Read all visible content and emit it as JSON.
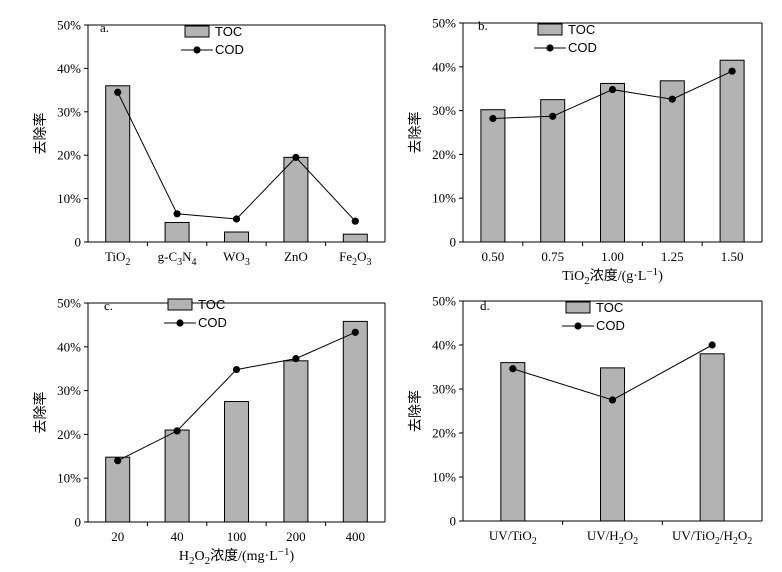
{
  "chart_data": [
    {
      "id": "a",
      "panel_label": "a.",
      "type": "bar+line",
      "ylabel": "去除率",
      "y_ticks": [
        "0",
        "10%",
        "20%",
        "30%",
        "40%",
        "50%"
      ],
      "ylim": [
        0,
        50
      ],
      "xlabel": "",
      "categories": [
        {
          "base": "TiO",
          "sub": "2",
          "rest": ""
        },
        {
          "base": "g-C",
          "sub": "3",
          "rest": "N",
          "sub2": "4"
        },
        {
          "base": "WO",
          "sub": "3",
          "rest": ""
        },
        {
          "base": "ZnO",
          "sub": "",
          "rest": ""
        },
        {
          "base": "Fe",
          "sub": "2",
          "rest": "O",
          "sub2": "3"
        }
      ],
      "series": [
        {
          "name": "TOC",
          "kind": "bar",
          "values": [
            36,
            4.5,
            2.3,
            19.5,
            1.8
          ]
        },
        {
          "name": "COD",
          "kind": "line",
          "values": [
            34.5,
            6.5,
            5.3,
            19.5,
            4.8
          ]
        }
      ],
      "legend": [
        "TOC",
        "COD"
      ]
    },
    {
      "id": "b",
      "panel_label": "b.",
      "type": "bar+line",
      "ylabel": "去除率",
      "y_ticks": [
        "0",
        "10%",
        "20%",
        "30%",
        "40%",
        "50%"
      ],
      "ylim": [
        0,
        50
      ],
      "xlabel": {
        "pre": "TiO",
        "sub": "2",
        "mid": "浓度/(g·L",
        "sup": "−1",
        "post": ")"
      },
      "categories": [
        {
          "base": "0.50"
        },
        {
          "base": "0.75"
        },
        {
          "base": "1.00"
        },
        {
          "base": "1.25"
        },
        {
          "base": "1.50"
        }
      ],
      "series": [
        {
          "name": "TOC",
          "kind": "bar",
          "values": [
            30.2,
            32.5,
            36.2,
            36.8,
            41.5
          ]
        },
        {
          "name": "COD",
          "kind": "line",
          "values": [
            28.2,
            28.7,
            34.8,
            32.6,
            39
          ]
        }
      ],
      "legend": [
        "TOC",
        "COD"
      ]
    },
    {
      "id": "c",
      "panel_label": "c.",
      "type": "bar+line",
      "ylabel": "去除率",
      "y_ticks": [
        "0",
        "10%",
        "20%",
        "30%",
        "40%",
        "50%"
      ],
      "ylim": [
        0,
        50
      ],
      "xlabel": {
        "pre": "H",
        "sub": "2",
        "mid": "O",
        "sub2": "2",
        "mid2": "浓度/(mg·L",
        "sup": "−1",
        "post": ")"
      },
      "categories": [
        {
          "base": "20"
        },
        {
          "base": "40"
        },
        {
          "base": "100"
        },
        {
          "base": "200"
        },
        {
          "base": "400"
        }
      ],
      "series": [
        {
          "name": "TOC",
          "kind": "bar",
          "values": [
            14.8,
            21,
            27.5,
            36.8,
            45.8
          ]
        },
        {
          "name": "COD",
          "kind": "line",
          "values": [
            14,
            20.8,
            34.8,
            37.3,
            43.3
          ]
        }
      ],
      "legend": [
        "TOC",
        "COD"
      ]
    },
    {
      "id": "d",
      "panel_label": "d.",
      "type": "bar+line",
      "ylabel": "去除率",
      "y_ticks": [
        "0",
        "10%",
        "20%",
        "30%",
        "40%",
        "50%"
      ],
      "ylim": [
        0,
        50
      ],
      "xlabel": "",
      "categories": [
        {
          "base": "UV/TiO",
          "sub": "2",
          "rest": ""
        },
        {
          "base": "UV/H",
          "sub": "2",
          "rest": "O",
          "sub2": "2"
        },
        {
          "base": "UV/TiO",
          "sub": "2",
          "rest": "/H",
          "sub2": "2",
          "rest2": "O",
          "sub3": "2"
        }
      ],
      "series": [
        {
          "name": "TOC",
          "kind": "bar",
          "values": [
            36,
            34.8,
            38
          ]
        },
        {
          "name": "COD",
          "kind": "line",
          "values": [
            34.6,
            27.5,
            40
          ]
        }
      ],
      "legend": [
        "TOC",
        "COD"
      ]
    }
  ]
}
